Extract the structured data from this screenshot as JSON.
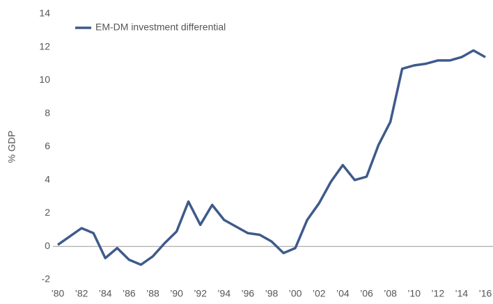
{
  "chart_data": {
    "type": "line",
    "y_label": "% GDP",
    "categories": [
      "’80",
      null,
      "’82",
      null,
      "’84",
      null,
      "’86",
      null,
      "’88",
      null,
      "’90",
      null,
      "’92",
      null,
      "’94",
      null,
      "’96",
      null,
      "’98",
      null,
      "’00",
      null,
      "’02",
      null,
      "’04",
      null,
      "’06",
      null,
      "’08",
      null,
      "’10",
      null,
      "’12",
      null,
      "’14",
      null,
      "’16"
    ],
    "series": [
      {
        "name": "EM-DM investment differential",
        "color": "#3e5a8b",
        "values": [
          0.1,
          0.6,
          1.1,
          0.8,
          -0.7,
          -0.1,
          -0.8,
          -1.1,
          -0.6,
          0.2,
          0.9,
          2.7,
          1.3,
          2.5,
          1.6,
          1.2,
          0.8,
          0.7,
          0.3,
          -0.4,
          -0.1,
          1.6,
          2.6,
          3.9,
          4.9,
          4.0,
          4.2,
          6.1,
          7.5,
          10.7,
          10.9,
          11.0,
          11.2,
          11.2,
          11.4,
          11.8,
          11.4
        ]
      }
    ],
    "ylim": [
      -2,
      14
    ],
    "yticks": [
      -2,
      0,
      2,
      4,
      6,
      8,
      10,
      12,
      14
    ],
    "grid": false,
    "legend": "upper left"
  }
}
